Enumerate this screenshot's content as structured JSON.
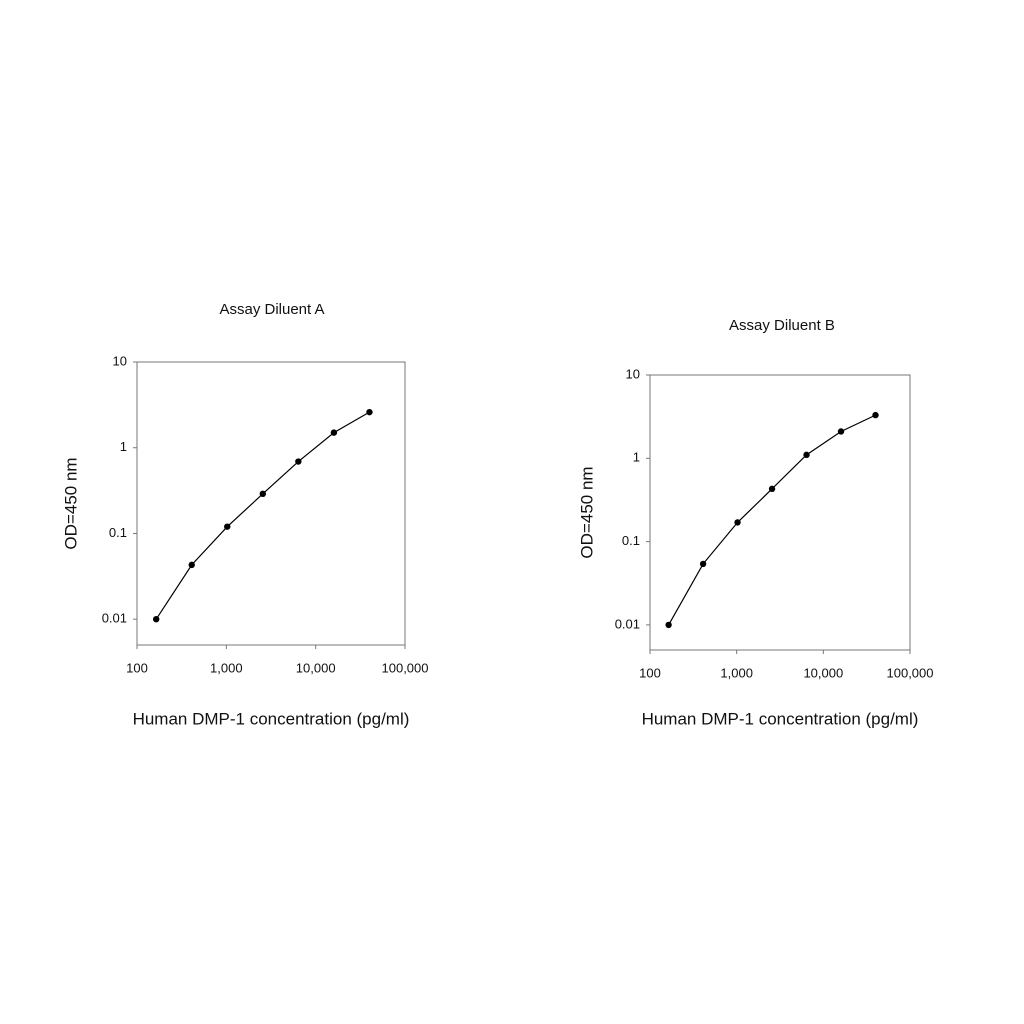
{
  "chart_data": [
    {
      "type": "line",
      "title": "Assay Diluent A",
      "x_label": "Human DMP-1 concentration (pg/ml)",
      "y_label": "OD=450 nm",
      "xscale": "log",
      "yscale": "log",
      "xlim": [
        100,
        100000
      ],
      "xticks": [
        100,
        {
          "value": 1000,
          "label": "1,000"
        },
        {
          "value": 10000,
          "label": "10,000"
        },
        {
          "value": 100000,
          "label": "100,000"
        }
      ],
      "ylim": [
        0.005,
        10
      ],
      "yticks": [
        0.01,
        0.1,
        1,
        10
      ],
      "series": [
        {
          "color": "#000000",
          "x": [
            164,
            410,
            1024,
            2560,
            6400,
            16000,
            40000
          ],
          "values": [
            0.01,
            0.043,
            0.12,
            0.29,
            0.69,
            1.5,
            2.6
          ]
        }
      ]
    },
    {
      "type": "line",
      "title": "Assay Diluent B",
      "x_label": "Human DMP-1 concentration (pg/ml)",
      "y_label": "OD=450 nm",
      "xscale": "log",
      "yscale": "log",
      "xlim": [
        100,
        100000
      ],
      "xticks": [
        100,
        {
          "value": 1000,
          "label": "1,000"
        },
        {
          "value": 10000,
          "label": "10,000"
        },
        {
          "value": 100000,
          "label": "100,000"
        }
      ],
      "ylim": [
        0.005,
        10
      ],
      "yticks": [
        0.01,
        0.1,
        1,
        10
      ],
      "series": [
        {
          "color": "#000000",
          "x": [
            164,
            410,
            1024,
            2560,
            6400,
            16000,
            40000
          ],
          "values": [
            0.01,
            0.054,
            0.17,
            0.43,
            1.1,
            2.1,
            3.3
          ]
        }
      ]
    }
  ]
}
